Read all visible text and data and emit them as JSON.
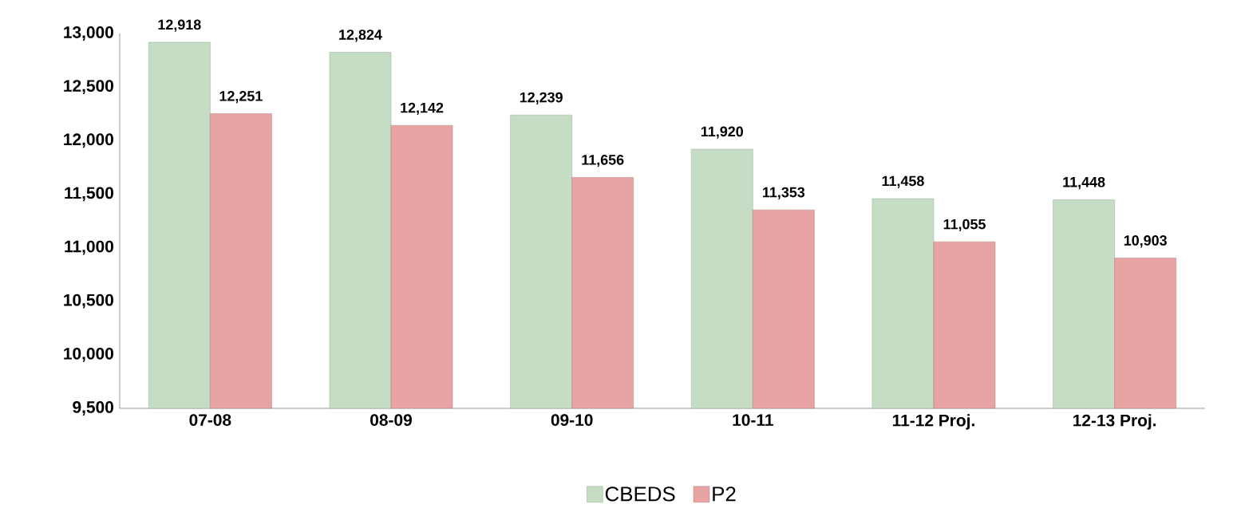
{
  "chart_data": {
    "type": "bar",
    "categories": [
      "07-08",
      "08-09",
      "09-10",
      "10-11",
      "11-12 Proj.",
      "12-13 Proj."
    ],
    "series": [
      {
        "name": "CBEDS",
        "color": "#c5dcc5",
        "values": [
          12918,
          12824,
          12239,
          11920,
          11458,
          11448
        ],
        "value_labels": [
          "12,918",
          "12,824",
          "12,239",
          "11,920",
          "11,458",
          "11,448"
        ]
      },
      {
        "name": "P2",
        "color": "#e8a3a3",
        "values": [
          12251,
          12142,
          11656,
          11353,
          11055,
          10903
        ],
        "value_labels": [
          "12,251",
          "12,142",
          "11,656",
          "11,353",
          "11,055",
          "10,903"
        ]
      }
    ],
    "ylim": [
      9500,
      13000
    ],
    "yticks": [
      {
        "value": 9500,
        "label": "9,500"
      },
      {
        "value": 10000,
        "label": "10,000"
      },
      {
        "value": 10500,
        "label": "10,500"
      },
      {
        "value": 11000,
        "label": "11,000"
      },
      {
        "value": 11500,
        "label": "11,500"
      },
      {
        "value": 12000,
        "label": "12,000"
      },
      {
        "value": 12500,
        "label": "12,500"
      },
      {
        "value": 13000,
        "label": "13,000"
      }
    ],
    "legend": "bottom"
  }
}
